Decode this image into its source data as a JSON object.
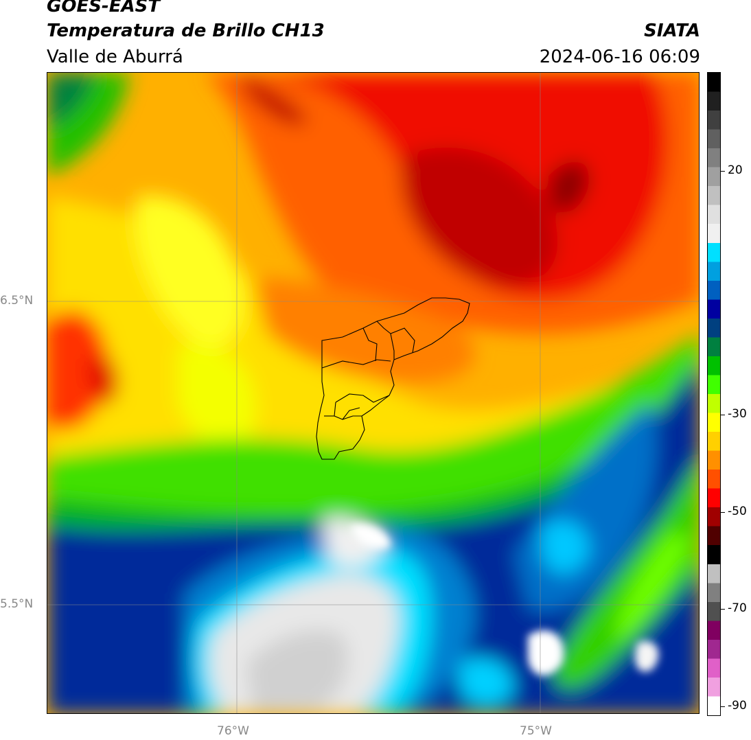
{
  "header": {
    "satellite": "GOES-EAST",
    "product": "Temperatura de Brillo CH13",
    "region": "Valle de Aburrá",
    "organization": "SIATA",
    "datetime": "2024-06-16 06:09"
  },
  "map": {
    "lat_labels": [
      "6.5°N",
      "5.5°N"
    ],
    "lon_labels": [
      "76°W",
      "75°W"
    ]
  },
  "colorbar": {
    "tick_labels": [
      "20",
      "-30",
      "-50",
      "-70",
      "-90"
    ],
    "tick_values": [
      20,
      -30,
      -50,
      -70,
      -90
    ],
    "range": [
      -90,
      40
    ],
    "colors": [
      "#ffffff",
      "#f0a0e0",
      "#e060c8",
      "#a02890",
      "#800060",
      "#505050",
      "#808080",
      "#c0c0c0",
      "#000000",
      "#500000",
      "#a00000",
      "#ff0000",
      "#ff5000",
      "#ff9000",
      "#ffd000",
      "#ffff00",
      "#c0ff00",
      "#40ff00",
      "#00c000",
      "#008040",
      "#004080",
      "#0000a0",
      "#0060c0",
      "#00a0e0",
      "#00e0ff",
      "#f0f0f0",
      "#e0e0e0",
      "#c0c0c0",
      "#a0a0a0",
      "#808080",
      "#606060",
      "#404040",
      "#202020",
      "#000000"
    ]
  }
}
